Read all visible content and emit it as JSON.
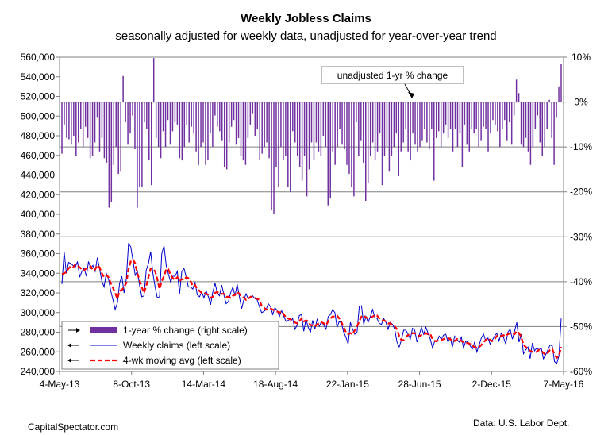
{
  "chart_data": {
    "type": "bar+line",
    "title": "Weekly Jobless Claims",
    "subtitle": "seasonally adjusted for weekly data, unadjusted for year-over-year  trend",
    "x_tick_labels": [
      "4-May-13",
      "8-Oct-13",
      "14-Mar-14",
      "18-Aug-14",
      "22-Jan-15",
      "28-Jun-15",
      "2-Dec-15",
      "7-May-16"
    ],
    "left_axis": {
      "range": [
        240000,
        560000
      ],
      "step": 20000,
      "tick_labels": [
        "560,000",
        "540,000",
        "520,000",
        "500,000",
        "480,000",
        "460,000",
        "440,000",
        "420,000",
        "400,000",
        "380,000",
        "360,000",
        "340,000",
        "320,000",
        "300,000",
        "280,000",
        "260,000",
        "240,000"
      ]
    },
    "right_axis": {
      "range": [
        -60,
        10
      ],
      "unit": "%",
      "tick_labels": [
        "10%",
        "0%",
        "-10%",
        "-20%",
        "-30%",
        "-40%",
        "-50%",
        "-60%"
      ]
    },
    "annotation": "unadjusted 1-yr % change",
    "legend": {
      "placement": "bottom-left",
      "entries": [
        {
          "label": "1-year % change (right scale)",
          "symbol": "bar"
        },
        {
          "label": "Weekly claims (left scale)",
          "symbol": "line"
        },
        {
          "label": "4-wk moving avg (left scale)",
          "symbol": "dashed"
        }
      ]
    },
    "series": [
      {
        "name": "1-year % change (right scale)",
        "axis": "right",
        "type": "bar",
        "color": "#7030A0",
        "values": [
          -11.5,
          -5,
          -8,
          -8.3,
          -9.5,
          -7.5,
          -12,
          -9,
          -6,
          -10,
          -5.5,
          -8,
          -12.5,
          -12,
          -9,
          -3.5,
          -11,
          -8,
          -12.5,
          -13.5,
          -23.5,
          -22.3,
          -14,
          -10,
          -16,
          -15.5,
          5.8,
          -4.5,
          -9.5,
          -7,
          -3,
          -10.5,
          -23.5,
          -19,
          -19,
          -4.5,
          -6,
          -13,
          -18.5,
          9.8,
          -8,
          -10,
          -12.5,
          -6.5,
          -10,
          -4,
          -9.5,
          -6.5,
          -4.5,
          -5,
          -12.5,
          -13,
          -10,
          -5,
          -9,
          -5.5,
          -7,
          -11,
          -14,
          -10,
          -9,
          -14,
          -13,
          -7,
          -10,
          -3,
          -5.5,
          -6.5,
          -8.5,
          -14.5,
          -15,
          -9,
          -5.5,
          -4,
          -9.5,
          -8,
          -12,
          -13,
          -14,
          -8,
          -5,
          -2.5,
          -7.5,
          -6,
          -13,
          -11.5,
          -10,
          -9,
          -12.5,
          -24,
          -25,
          -14.5,
          -19,
          -10,
          -13,
          -12,
          -19,
          -20,
          -6.5,
          -9,
          -12,
          -14.5,
          -17.5,
          -12,
          -21,
          -15,
          -9,
          -13,
          -9,
          -11,
          -12,
          -7.5,
          -10,
          -23,
          -21.5,
          -11,
          -14,
          -10,
          -6,
          -9.5,
          -10.5,
          -14,
          -16,
          -19,
          -21,
          -4.5,
          -12,
          -8.5,
          -13.5,
          -22,
          -18,
          -12,
          -9,
          -13,
          -11,
          -7,
          -18.5,
          -12,
          -10,
          -15.5,
          -12,
          -10,
          -7,
          -16.5,
          -11,
          -9,
          -6,
          -11,
          -13,
          -7,
          -9.5,
          -11,
          -10,
          -8.5,
          -6,
          -9,
          -10.5,
          -6,
          -17.5,
          -8,
          -6.5,
          -10,
          -7,
          -5,
          -8,
          -6,
          -11,
          -6,
          -10,
          -7,
          -14.5,
          -5,
          -9.5,
          -11,
          -6,
          -7,
          -6,
          -10,
          -8.5,
          -5.5,
          -6,
          -11,
          -7,
          -4,
          -5,
          -6.5,
          -10,
          -6,
          -4,
          -8.5,
          -4.5,
          -9.5,
          -3,
          5,
          2,
          -9.5,
          -10,
          -8,
          -11,
          -14,
          -10,
          -6,
          -3,
          -9,
          -12,
          -10,
          -6,
          0.5,
          -8,
          -14,
          -3.5,
          3.5,
          8.5
        ]
      },
      {
        "name": "Weekly claims (left scale)",
        "axis": "left",
        "type": "line",
        "color": "#0000CC",
        "values": [
          329000,
          362000,
          340000,
          351000,
          350000,
          348000,
          346000,
          352000,
          336000,
          342000,
          345000,
          337000,
          352000,
          345000,
          348000,
          342000,
          356000,
          344000,
          332000,
          326000,
          340000,
          334000,
          322000,
          313000,
          303000,
          310000,
          330000,
          337000,
          320000,
          334000,
          370000,
          367000,
          353000,
          338000,
          342000,
          328000,
          316000,
          317000,
          343000,
          350000,
          362000,
          340000,
          326000,
          315000,
          316000,
          360000,
          368000,
          348000,
          339000,
          331000,
          337000,
          337000,
          342000,
          319000,
          342000,
          345000,
          336000,
          326000,
          326000,
          324000,
          331000,
          318000,
          316000,
          321000,
          315000,
          322000,
          316000,
          308000,
          321000,
          330000,
          320000,
          317000,
          328000,
          318000,
          309000,
          311000,
          320000,
          326000,
          317000,
          329000,
          316000,
          304000,
          313000,
          319000,
          314000,
          316000,
          317000,
          314000,
          313000,
          306000,
          300000,
          301000,
          303000,
          309000,
          306000,
          298000,
          305000,
          302000,
          296000,
          302000,
          296000,
          291000,
          292000,
          291000,
          294000,
          283000,
          287000,
          297000,
          298000,
          281000,
          293000,
          285000,
          280000,
          292000,
          283000,
          293000,
          286000,
          291000,
          287000,
          283000,
          296000,
          298000,
          303000,
          300000,
          285000,
          291000,
          289000,
          280000,
          275000,
          268000,
          290000,
          283000,
          278000,
          280000,
          306000,
          307000,
          288000,
          296000,
          290000,
          296000,
          303000,
          295000,
          294000,
          289000,
          288000,
          294000,
          290000,
          283000,
          290000,
          288000,
          283000,
          270000,
          265000,
          272000,
          282000,
          282000,
          278000,
          273000,
          284000,
          282000,
          270000,
          277000,
          285000,
          278000,
          285000,
          279000,
          273000,
          264000,
          271000,
          270000,
          276000,
          273000,
          277000,
          278000,
          270000,
          274000,
          265000,
          276000,
          273000,
          270000,
          275000,
          264000,
          271000,
          270000,
          266000,
          263000,
          270000,
          260000,
          267000,
          274000,
          278000,
          271000,
          274000,
          268000,
          272000,
          276000,
          279000,
          271000,
          279000,
          275000,
          268000,
          280000,
          283000,
          273000,
          281000,
          290000,
          270000,
          278000,
          258000,
          262000,
          265000,
          253000,
          269000,
          261000,
          264000,
          262000,
          264000,
          253000,
          257000,
          262000,
          267000,
          266000,
          250000,
          248000,
          256000,
          294000
        ]
      },
      {
        "name": "4-wk moving avg (left scale)",
        "axis": "left",
        "type": "line",
        "style": "dashed",
        "color": "#FF0000",
        "values": [
          339000,
          340000,
          341000,
          345000,
          347000,
          346000,
          349000,
          348000,
          346000,
          344000,
          343000,
          345000,
          345000,
          347000,
          343000,
          344000,
          348000,
          346000,
          340000,
          336000,
          338000,
          336000,
          330000,
          325000,
          320000,
          314000,
          322000,
          323000,
          326000,
          330000,
          344000,
          352000,
          354000,
          350000,
          340000,
          333000,
          326000,
          320000,
          327000,
          336000,
          345000,
          344000,
          342000,
          334000,
          324000,
          332000,
          337000,
          344000,
          344000,
          338000,
          335000,
          333000,
          336000,
          332000,
          334000,
          333000,
          336000,
          335000,
          332000,
          327000,
          328000,
          324000,
          322000,
          320000,
          320000,
          319000,
          318000,
          315000,
          316000,
          320000,
          321000,
          319000,
          319000,
          319000,
          316000,
          316000,
          315000,
          317000,
          318000,
          321000,
          319000,
          316000,
          315000,
          313000,
          314000,
          316000,
          316000,
          315000,
          314000,
          313000,
          307000,
          305000,
          303000,
          303000,
          304000,
          303000,
          302000,
          301000,
          300000,
          301000,
          298000,
          295000,
          294000,
          293000,
          292000,
          290000,
          289000,
          291000,
          294000,
          291000,
          292000,
          291000,
          287000,
          287000,
          286000,
          288000,
          289000,
          290000,
          289000,
          287000,
          291000,
          294000,
          296000,
          296000,
          297000,
          294000,
          290000,
          285000,
          280000,
          278000,
          279000,
          278000,
          282000,
          286000,
          291000,
          296000,
          297000,
          295000,
          294000,
          294000,
          296000,
          297000,
          297000,
          294000,
          292000,
          292000,
          291000,
          289000,
          289000,
          287000,
          286000,
          283000,
          276000,
          272000,
          272000,
          275000,
          277000,
          278000,
          279000,
          279000,
          277000,
          276000,
          277000,
          277000,
          279000,
          278000,
          278000,
          273000,
          271000,
          271000,
          272000,
          272000,
          273000,
          274000,
          274000,
          273000,
          271000,
          271000,
          273000,
          273000,
          271000,
          270000,
          269000,
          269000,
          268000,
          266000,
          265000,
          264000,
          265000,
          267000,
          270000,
          272000,
          274000,
          272000,
          271000,
          273000,
          276000,
          277000,
          276000,
          277000,
          276000,
          278000,
          279000,
          279000,
          278000,
          281000,
          279000,
          275000,
          267000,
          265000,
          263000,
          261000,
          260000,
          260000,
          260000,
          262000,
          261000,
          259000,
          257000,
          259000,
          262000,
          263000,
          257000,
          254000,
          256000,
          265000
        ]
      }
    ]
  },
  "source_left": "CapitalSpectator.com",
  "source_right": "Data: U.S. Labor Dept."
}
